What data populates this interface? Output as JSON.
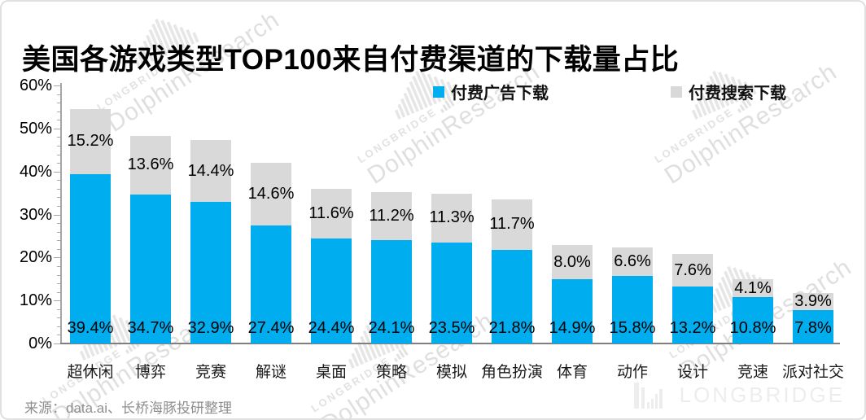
{
  "title": "美国各游戏类型TOP100来自付费渠道的下载量占比",
  "chart_data": {
    "type": "bar",
    "stacked": true,
    "categories": [
      "超休闲",
      "博弈",
      "竞赛",
      "解谜",
      "桌面",
      "策略",
      "模拟",
      "角色扮演",
      "体育",
      "动作",
      "设计",
      "竞速",
      "派对社交"
    ],
    "series": [
      {
        "name": "付费广告下载",
        "color": "#00ADEF",
        "values": [
          39.4,
          34.7,
          32.9,
          27.4,
          24.4,
          24.1,
          23.5,
          21.8,
          14.9,
          15.8,
          13.2,
          10.8,
          7.8
        ]
      },
      {
        "name": "付费搜索下载",
        "color": "#D9D9D9",
        "values": [
          15.2,
          13.6,
          14.4,
          14.6,
          11.6,
          11.2,
          11.3,
          11.7,
          8.0,
          6.6,
          7.6,
          4.1,
          3.9
        ]
      }
    ],
    "title": "美国各游戏类型TOP100来自付费渠道的下载量占比",
    "xlabel": "",
    "ylabel": "",
    "ylim": [
      0,
      60
    ],
    "y_ticks": [
      "0%",
      "10%",
      "20%",
      "30%",
      "40%",
      "50%",
      "60%"
    ],
    "value_suffix": "%",
    "legend_position": "top",
    "grid": false,
    "axis_color": "#a6a6a6",
    "baseline_color": "#7f7f7f"
  },
  "footer": {
    "source": "来源：data.ai、长桥海豚投研整理"
  },
  "branding": {
    "logo_text": "LONGBRIDGE",
    "watermark_line1": "LONGBRIDGE",
    "watermark_line2": "DolphinResearch"
  }
}
